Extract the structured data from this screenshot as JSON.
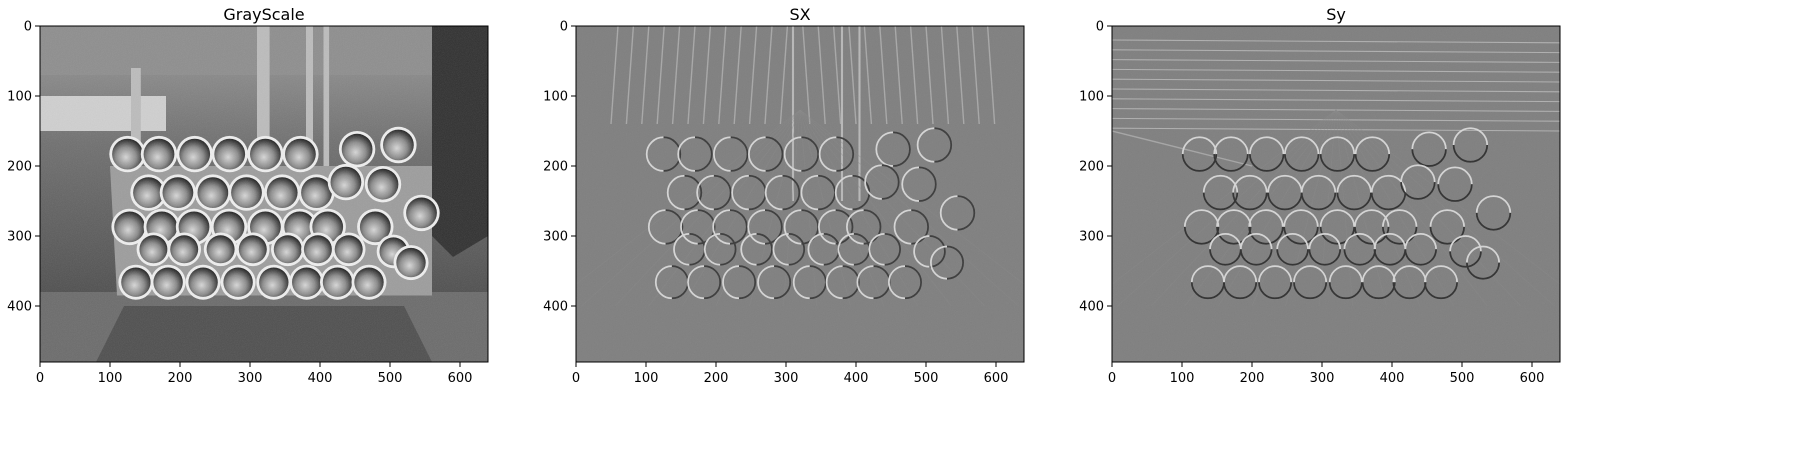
{
  "panels": [
    {
      "title": "GrayScale",
      "image": "grayscale-pipe-stack",
      "x_ticks": [
        "0",
        "100",
        "200",
        "300",
        "400",
        "500",
        "600"
      ],
      "y_ticks": [
        "0",
        "100",
        "200",
        "300",
        "400"
      ]
    },
    {
      "title": "SX",
      "image": "sobel-x-edge-map",
      "x_ticks": [
        "0",
        "100",
        "200",
        "300",
        "400",
        "500",
        "600"
      ],
      "y_ticks": [
        "0",
        "100",
        "200",
        "300",
        "400"
      ]
    },
    {
      "title": "Sy",
      "image": "sobel-y-edge-map",
      "x_ticks": [
        "0",
        "100",
        "200",
        "300",
        "400",
        "500",
        "600"
      ],
      "y_ticks": [
        "0",
        "100",
        "200",
        "300",
        "400"
      ]
    }
  ],
  "image_size": {
    "width": 640,
    "height": 480
  },
  "colors": {
    "background": "#ffffff",
    "edge_gray": "#7f7f7f",
    "frame": "#000000"
  }
}
